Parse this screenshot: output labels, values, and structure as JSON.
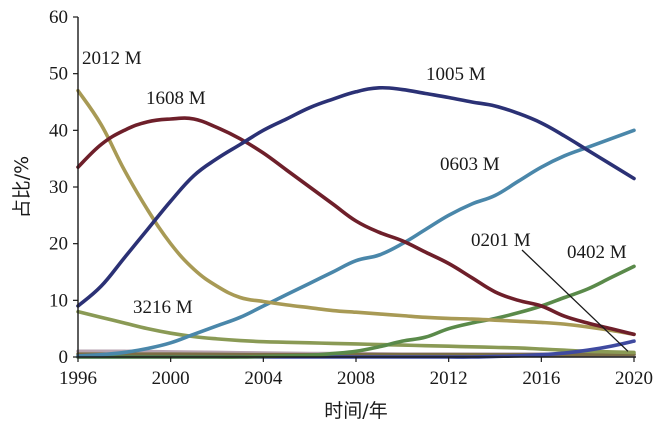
{
  "chart_data": {
    "type": "line",
    "title": "",
    "xlabel": "时间/年",
    "ylabel": "占比/%",
    "xlim": [
      1996,
      2020
    ],
    "ylim": [
      0,
      60
    ],
    "xticks": [
      1996,
      2000,
      2004,
      2008,
      2012,
      2016,
      2020
    ],
    "yticks": [
      0,
      10,
      20,
      30,
      40,
      50,
      60
    ],
    "grid": false,
    "legend": "none",
    "series": [
      {
        "name": "2012 M",
        "color": "#a89a55",
        "points": [
          [
            1996,
            47
          ],
          [
            1997,
            41
          ],
          [
            1998,
            33
          ],
          [
            1999,
            26
          ],
          [
            2000,
            20
          ],
          [
            2001,
            15.5
          ],
          [
            2002,
            12.5
          ],
          [
            2003,
            10.5
          ],
          [
            2004,
            9.8
          ],
          [
            2005,
            9.2
          ],
          [
            2006,
            8.7
          ],
          [
            2007,
            8.2
          ],
          [
            2008,
            7.9
          ],
          [
            2009,
            7.6
          ],
          [
            2010,
            7.3
          ],
          [
            2011,
            7.0
          ],
          [
            2012,
            6.8
          ],
          [
            2013,
            6.7
          ],
          [
            2014,
            6.5
          ],
          [
            2015,
            6.3
          ],
          [
            2016,
            6.1
          ],
          [
            2017,
            5.8
          ],
          [
            2018,
            5.3
          ],
          [
            2019,
            4.7
          ],
          [
            2020,
            4.0
          ]
        ]
      },
      {
        "name": "1608 M",
        "color": "#6e1f2a",
        "points": [
          [
            1996,
            33.5
          ],
          [
            1997,
            37.5
          ],
          [
            1998,
            40
          ],
          [
            1999,
            41.5
          ],
          [
            2000,
            42
          ],
          [
            2001,
            42
          ],
          [
            2002,
            40.5
          ],
          [
            2003,
            38.5
          ],
          [
            2004,
            36
          ],
          [
            2005,
            33
          ],
          [
            2006,
            30
          ],
          [
            2007,
            27
          ],
          [
            2008,
            24
          ],
          [
            2009,
            22
          ],
          [
            2010,
            20.5
          ],
          [
            2011,
            18.5
          ],
          [
            2012,
            16.5
          ],
          [
            2013,
            14
          ],
          [
            2014,
            11.5
          ],
          [
            2015,
            10
          ],
          [
            2016,
            9
          ],
          [
            2017,
            7.2
          ],
          [
            2018,
            6
          ],
          [
            2019,
            5
          ],
          [
            2020,
            4
          ]
        ]
      },
      {
        "name": "1005 M",
        "color": "#2b3175",
        "points": [
          [
            1996,
            9
          ],
          [
            1997,
            12.5
          ],
          [
            1998,
            17.5
          ],
          [
            1999,
            22.5
          ],
          [
            2000,
            27.5
          ],
          [
            2001,
            32
          ],
          [
            2002,
            35
          ],
          [
            2003,
            37.5
          ],
          [
            2004,
            40
          ],
          [
            2005,
            42
          ],
          [
            2006,
            44
          ],
          [
            2007,
            45.5
          ],
          [
            2008,
            46.8
          ],
          [
            2009,
            47.5
          ],
          [
            2010,
            47.2
          ],
          [
            2011,
            46.5
          ],
          [
            2012,
            45.8
          ],
          [
            2013,
            45
          ],
          [
            2014,
            44.3
          ],
          [
            2015,
            43
          ],
          [
            2016,
            41.3
          ],
          [
            2017,
            39
          ],
          [
            2018,
            36.5
          ],
          [
            2019,
            34
          ],
          [
            2020,
            31.5
          ]
        ]
      },
      {
        "name": "0603 M",
        "color": "#4a87aa",
        "points": [
          [
            1996,
            0.2
          ],
          [
            1997,
            0.4
          ],
          [
            1998,
            0.8
          ],
          [
            1999,
            1.5
          ],
          [
            2000,
            2.5
          ],
          [
            2001,
            4
          ],
          [
            2002,
            5.5
          ],
          [
            2003,
            7
          ],
          [
            2004,
            9
          ],
          [
            2005,
            11
          ],
          [
            2006,
            13
          ],
          [
            2007,
            15
          ],
          [
            2008,
            17
          ],
          [
            2009,
            18
          ],
          [
            2010,
            20
          ],
          [
            2011,
            22.5
          ],
          [
            2012,
            25
          ],
          [
            2013,
            27
          ],
          [
            2014,
            28.5
          ],
          [
            2015,
            31
          ],
          [
            2016,
            33.5
          ],
          [
            2017,
            35.5
          ],
          [
            2018,
            37
          ],
          [
            2019,
            38.5
          ],
          [
            2020,
            40
          ]
        ]
      },
      {
        "name": "0402 M",
        "color": "#5a8a4a",
        "points": [
          [
            1996,
            0
          ],
          [
            1997,
            0
          ],
          [
            1998,
            0
          ],
          [
            1999,
            0
          ],
          [
            2000,
            0
          ],
          [
            2001,
            0
          ],
          [
            2002,
            0
          ],
          [
            2003,
            0
          ],
          [
            2004,
            0.1
          ],
          [
            2005,
            0.2
          ],
          [
            2006,
            0.3
          ],
          [
            2007,
            0.6
          ],
          [
            2008,
            1
          ],
          [
            2009,
            1.8
          ],
          [
            2010,
            2.8
          ],
          [
            2011,
            3.5
          ],
          [
            2012,
            5
          ],
          [
            2013,
            6
          ],
          [
            2014,
            6.8
          ],
          [
            2015,
            7.8
          ],
          [
            2016,
            9
          ],
          [
            2017,
            10.5
          ],
          [
            2018,
            12
          ],
          [
            2019,
            14
          ],
          [
            2020,
            16
          ]
        ]
      },
      {
        "name": "3216 M",
        "color": "#8a9a55",
        "points": [
          [
            1996,
            8
          ],
          [
            1997,
            7
          ],
          [
            1998,
            6
          ],
          [
            1999,
            5
          ],
          [
            2000,
            4.2
          ],
          [
            2001,
            3.6
          ],
          [
            2002,
            3.2
          ],
          [
            2003,
            2.9
          ],
          [
            2004,
            2.7
          ],
          [
            2005,
            2.6
          ],
          [
            2006,
            2.5
          ],
          [
            2007,
            2.4
          ],
          [
            2008,
            2.3
          ],
          [
            2009,
            2.2
          ],
          [
            2010,
            2.1
          ],
          [
            2011,
            2
          ],
          [
            2012,
            1.9
          ],
          [
            2013,
            1.8
          ],
          [
            2014,
            1.7
          ],
          [
            2015,
            1.6
          ],
          [
            2016,
            1.4
          ],
          [
            2017,
            1.2
          ],
          [
            2018,
            1
          ],
          [
            2019,
            0.9
          ],
          [
            2020,
            0.8
          ]
        ]
      },
      {
        "name": "0201 M",
        "color": "#3f4aa0",
        "points": [
          [
            1996,
            0
          ],
          [
            1997,
            0
          ],
          [
            1998,
            0
          ],
          [
            1999,
            0
          ],
          [
            2000,
            0
          ],
          [
            2001,
            0
          ],
          [
            2002,
            0
          ],
          [
            2003,
            0
          ],
          [
            2004,
            0
          ],
          [
            2005,
            0
          ],
          [
            2006,
            0
          ],
          [
            2007,
            0
          ],
          [
            2008,
            0
          ],
          [
            2009,
            0
          ],
          [
            2010,
            0
          ],
          [
            2011,
            0
          ],
          [
            2012,
            0
          ],
          [
            2013,
            0
          ],
          [
            2014,
            0.1
          ],
          [
            2015,
            0.2
          ],
          [
            2016,
            0.4
          ],
          [
            2017,
            0.7
          ],
          [
            2018,
            1.2
          ],
          [
            2019,
            1.9
          ],
          [
            2020,
            2.8
          ]
        ]
      },
      {
        "name": "",
        "color": "#b7a3b0",
        "points": [
          [
            1996,
            1
          ],
          [
            1998,
            1
          ],
          [
            2000,
            0.9
          ],
          [
            2002,
            0.8
          ],
          [
            2004,
            0.7
          ],
          [
            2006,
            0.6
          ],
          [
            2008,
            0.6
          ],
          [
            2010,
            0.5
          ],
          [
            2012,
            0.5
          ],
          [
            2014,
            0.5
          ],
          [
            2016,
            0.5
          ],
          [
            2018,
            0.4
          ],
          [
            2020,
            0.4
          ]
        ]
      },
      {
        "name": "",
        "color": "#7b6e45",
        "points": [
          [
            1996,
            0.5
          ],
          [
            2000,
            0.5
          ],
          [
            2004,
            0.4
          ],
          [
            2008,
            0.4
          ],
          [
            2012,
            0.4
          ],
          [
            2016,
            0.4
          ],
          [
            2020,
            0.5
          ]
        ]
      }
    ],
    "annotations": [
      {
        "text": "2012 M",
        "series": "2012 M"
      },
      {
        "text": "1608 M",
        "series": "1608 M"
      },
      {
        "text": "1005 M",
        "series": "1005 M"
      },
      {
        "text": "0603 M",
        "series": "0603 M"
      },
      {
        "text": "3216 M",
        "series": "3216 M"
      },
      {
        "text": "0201 M",
        "series": "0201 M",
        "leader_to": [
          2020,
          1
        ]
      },
      {
        "text": "0402 M",
        "series": "0402 M"
      }
    ]
  }
}
